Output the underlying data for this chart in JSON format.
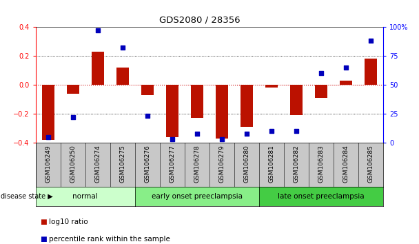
{
  "title": "GDS2080 / 28356",
  "samples": [
    "GSM106249",
    "GSM106250",
    "GSM106274",
    "GSM106275",
    "GSM106276",
    "GSM106277",
    "GSM106278",
    "GSM106279",
    "GSM106280",
    "GSM106281",
    "GSM106282",
    "GSM106283",
    "GSM106284",
    "GSM106285"
  ],
  "log10_ratio": [
    -0.38,
    -0.06,
    0.23,
    0.12,
    -0.07,
    -0.36,
    -0.23,
    -0.37,
    -0.29,
    -0.02,
    -0.21,
    -0.09,
    0.03,
    0.18
  ],
  "percentile_rank": [
    5,
    22,
    97,
    82,
    23,
    3,
    8,
    3,
    8,
    10,
    10,
    60,
    65,
    88
  ],
  "groups": [
    {
      "label": "normal",
      "start": 0,
      "end": 4,
      "color": "#ccffcc"
    },
    {
      "label": "early onset preeclampsia",
      "start": 4,
      "end": 9,
      "color": "#88ee88"
    },
    {
      "label": "late onset preeclampsia",
      "start": 9,
      "end": 14,
      "color": "#44cc44"
    }
  ],
  "ylim_left": [
    -0.4,
    0.4
  ],
  "ylim_right": [
    0,
    100
  ],
  "yticks_left": [
    -0.4,
    -0.2,
    0.0,
    0.2,
    0.4
  ],
  "yticks_right": [
    0,
    25,
    50,
    75,
    100
  ],
  "bar_color": "#bb1100",
  "dot_color": "#0000bb",
  "zero_line_color": "#cc0000",
  "dotted_line_color": "#000000",
  "bg_color": "#ffffff",
  "tick_label_area_color": "#c8c8c8",
  "group_label_fontsize": 7.5,
  "title_fontsize": 9.5,
  "legend_fontsize": 7.5,
  "axis_tick_fontsize": 7,
  "sample_label_fontsize": 6.5
}
